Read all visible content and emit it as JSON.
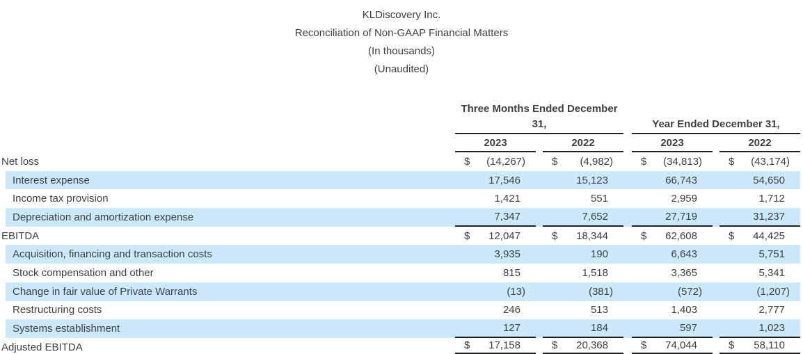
{
  "titles": {
    "company": "KLDiscovery Inc.",
    "report": "Reconciliation of Non-GAAP Financial Matters",
    "units_note": "(In thousands)",
    "audit_note": "(Unaudited)"
  },
  "table": {
    "currency_symbol": "$",
    "column_groups": [
      {
        "label": "Three Months Ended December 31,",
        "columns": [
          "2023",
          "2022"
        ]
      },
      {
        "label": "Year Ended December 31,",
        "columns": [
          "2023",
          "2022"
        ]
      }
    ],
    "rows": [
      {
        "label": "Net loss",
        "indent": false,
        "highlight": false,
        "dollar": true,
        "rule_bottom": "none",
        "values": [
          "(14,267)",
          "(4,982)",
          "(34,813)",
          "(43,174)"
        ]
      },
      {
        "label": "Interest expense",
        "indent": true,
        "highlight": true,
        "dollar": false,
        "rule_bottom": "none",
        "values": [
          "17,546",
          "15,123",
          "66,743",
          "54,650"
        ]
      },
      {
        "label": "Income tax provision",
        "indent": true,
        "highlight": false,
        "dollar": false,
        "rule_bottom": "none",
        "values": [
          "1,421",
          "551",
          "2,959",
          "1,712"
        ]
      },
      {
        "label": "Depreciation and amortization expense",
        "indent": true,
        "highlight": true,
        "dollar": false,
        "rule_bottom": "single",
        "values": [
          "7,347",
          "7,652",
          "27,719",
          "31,237"
        ]
      },
      {
        "label": "EBITDA",
        "indent": false,
        "highlight": false,
        "dollar": true,
        "rule_bottom": "none",
        "values": [
          "12,047",
          "18,344",
          "62,608",
          "44,425"
        ]
      },
      {
        "label": "Acquisition, financing and transaction costs",
        "indent": true,
        "highlight": true,
        "dollar": false,
        "rule_bottom": "none",
        "values": [
          "3,935",
          "190",
          "6,643",
          "5,751"
        ]
      },
      {
        "label": "Stock compensation and other",
        "indent": true,
        "highlight": false,
        "dollar": false,
        "rule_bottom": "none",
        "values": [
          "815",
          "1,518",
          "3,365",
          "5,341"
        ]
      },
      {
        "label": "Change in fair value of Private Warrants",
        "indent": true,
        "highlight": true,
        "dollar": false,
        "rule_bottom": "none",
        "values": [
          "(13)",
          "(381)",
          "(572)",
          "(1,207)"
        ]
      },
      {
        "label": "Restructuring costs",
        "indent": true,
        "highlight": false,
        "dollar": false,
        "rule_bottom": "none",
        "values": [
          "246",
          "513",
          "1,403",
          "2,777"
        ]
      },
      {
        "label": "Systems establishment",
        "indent": true,
        "highlight": true,
        "dollar": false,
        "rule_bottom": "single",
        "values": [
          "127",
          "184",
          "597",
          "1,023"
        ]
      },
      {
        "label": "Adjusted EBITDA",
        "indent": false,
        "highlight": false,
        "dollar": true,
        "rule_bottom": "double",
        "values": [
          "17,158",
          "20,368",
          "74,044",
          "58,110"
        ]
      }
    ]
  }
}
